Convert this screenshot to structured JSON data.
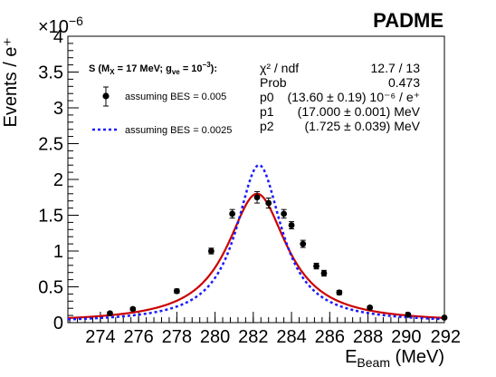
{
  "header": {
    "experiment_label": "PADME",
    "y_scale_base": "×10",
    "y_scale_exp": "−6"
  },
  "legend": {
    "title_pre": "S (M",
    "title_sub1": "X",
    "title_mid": " = 17 MeV; g",
    "title_sub2": "ve",
    "title_mid2": " = 10",
    "title_sup": "−3",
    "title_post": "):",
    "entry_points": "assuming BES = 0.005",
    "entry_dashed": "assuming BES = 0.0025",
    "points_color": "#000000",
    "dashed_color": "#1a1aff"
  },
  "fit_stats": {
    "rows": [
      {
        "label": "χ² / ndf",
        "value": "12.7 / 13"
      },
      {
        "label": "Prob",
        "value": "0.473"
      },
      {
        "label": "p0",
        "value": "(13.60 ± 0.19) 10⁻⁶ / e⁺"
      },
      {
        "label": "p1",
        "value": "(17.000 ± 0.001) MeV"
      },
      {
        "label": "p2",
        "value": "(1.725 ±  0.039) MeV"
      }
    ]
  },
  "chart_data": {
    "type": "scatter",
    "xlabel_main": "E",
    "xlabel_sub": "Beam",
    "xlabel_unit": " (MeV)",
    "ylabel": "Events / e⁺",
    "xlim": [
      272.3,
      292.0
    ],
    "ylim": [
      0,
      4
    ],
    "x_ticks": [
      274,
      276,
      278,
      280,
      282,
      284,
      286,
      288,
      290,
      292
    ],
    "y_ticks": [
      0,
      0.5,
      1,
      1.5,
      2,
      2.5,
      3,
      3.5,
      4
    ],
    "y_tick_labels": [
      "0",
      "0.5",
      "1",
      "1.5",
      "2",
      "2.5",
      "3",
      "3.5",
      "4"
    ],
    "x_tick_labels": [
      "274",
      "276",
      "278",
      "280",
      "282",
      "284",
      "286",
      "288",
      "290",
      "292"
    ],
    "series": [
      {
        "name": "assuming BES = 0.005",
        "kind": "points",
        "color": "#000000",
        "x": [
          274.5,
          275.7,
          278.0,
          279.8,
          280.9,
          282.2,
          282.8,
          283.6,
          284.0,
          284.6,
          285.3,
          285.7,
          286.5,
          288.1,
          290.1,
          292.0
        ],
        "y": [
          0.13,
          0.19,
          0.44,
          1.0,
          1.52,
          1.75,
          1.67,
          1.52,
          1.36,
          1.1,
          0.79,
          0.69,
          0.42,
          0.21,
          0.11,
          0.07
        ],
        "err": [
          0.02,
          0.02,
          0.03,
          0.04,
          0.06,
          0.08,
          0.07,
          0.06,
          0.05,
          0.05,
          0.04,
          0.04,
          0.03,
          0.02,
          0.02,
          0.01
        ]
      },
      {
        "name": "fit",
        "kind": "curve",
        "color": "#cc0000",
        "center": 282.2,
        "peak": 1.8,
        "half_width": 1.9
      },
      {
        "name": "assuming BES = 0.0025",
        "kind": "dashed-curve",
        "color": "#1a1aff",
        "center": 282.3,
        "peak": 2.2,
        "half_width": 1.45
      }
    ]
  }
}
